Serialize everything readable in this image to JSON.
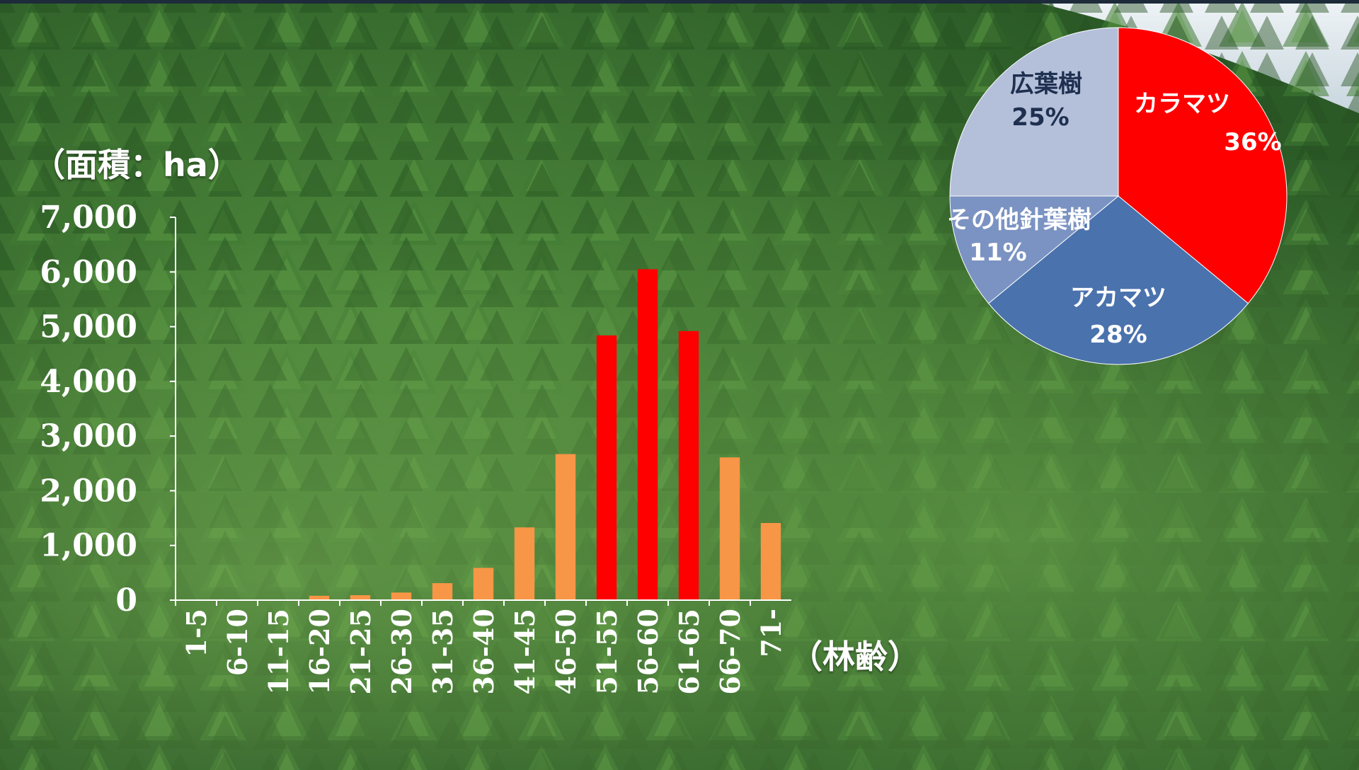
{
  "chart_data": [
    {
      "type": "bar",
      "ylabel": "（面積：ha）",
      "xlabel": "（林齢）",
      "ylim": [
        0,
        7000
      ],
      "y_ticks": [
        "0",
        "1,000",
        "2,000",
        "3,000",
        "4,000",
        "5,000",
        "6,000",
        "7,000"
      ],
      "categories": [
        "1-5",
        "6-10",
        "11-15",
        "16-20",
        "21-25",
        "26-30",
        "31-35",
        "36-40",
        "41-45",
        "46-50",
        "51-55",
        "56-60",
        "61-65",
        "66-70",
        "71-"
      ],
      "values": [
        0,
        10,
        0,
        80,
        90,
        140,
        310,
        590,
        1330,
        2670,
        4840,
        6050,
        4920,
        2610,
        1410
      ],
      "colors": [
        "#f79646",
        "#f79646",
        "#f79646",
        "#f79646",
        "#f79646",
        "#f79646",
        "#f79646",
        "#f79646",
        "#f79646",
        "#f79646",
        "#ff0000",
        "#ff0000",
        "#ff0000",
        "#f79646",
        "#f79646"
      ],
      "grid": false
    },
    {
      "type": "pie",
      "slices": [
        {
          "label": "カラマツ",
          "percent_label": "36%",
          "value": 36,
          "color": "#ff0000",
          "text_color": "#ffffff"
        },
        {
          "label": "アカマツ",
          "percent_label": "28%",
          "value": 28,
          "color": "#4a72ad",
          "text_color": "#ffffff"
        },
        {
          "label": "その他針葉樹",
          "percent_label": "11%",
          "value": 11,
          "color": "#7b93c2",
          "text_color": "#ffffff"
        },
        {
          "label": "広葉樹",
          "percent_label": "25%",
          "value": 25,
          "color": "#b4c0da",
          "text_color": "#1f2f4f"
        }
      ]
    }
  ]
}
